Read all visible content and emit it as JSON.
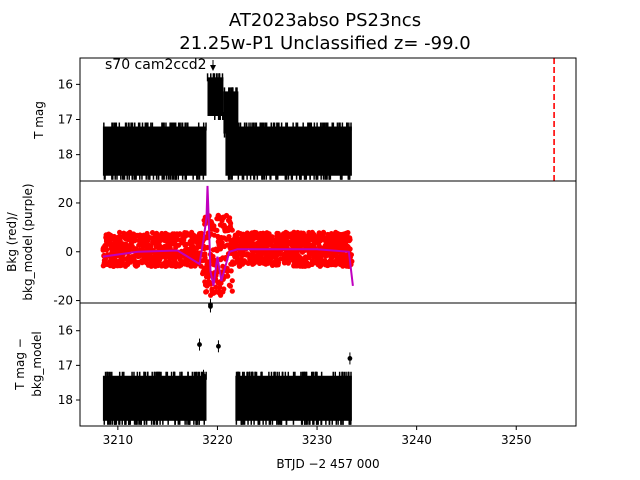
{
  "title_line1": "AT2023abso  PS23ncs",
  "title_line2": "21.25w-P1 Unclassified z= -99.0",
  "annotation": "s70 cam2ccd2",
  "xlabel": "BTJD −2 457 000",
  "colors": {
    "data": "#000000",
    "bkg": "#ff0000",
    "bkg_model": "#bf00bf",
    "marker_line": "#ff0000"
  },
  "chart_data": [
    {
      "type": "scatter",
      "panel": "top",
      "ylabel": "T mag",
      "y_inverted": true,
      "xlim": [
        3206.2,
        3256.0
      ],
      "ylim": [
        18.75,
        15.25
      ],
      "x_ticks": [
        3210,
        3220,
        3230,
        3240,
        3250
      ],
      "y_ticks": [
        16,
        17,
        18
      ],
      "vertical_line": {
        "x": 3253.8,
        "style": "dashed"
      },
      "series": [
        {
          "x_ranges": [
            [
              3208.5,
              3218.9
            ],
            [
              3220.8,
              3233.5
            ]
          ],
          "y_band": [
            17.2,
            18.6
          ]
        },
        {
          "x_range": [
            3219.0,
            3220.6
          ],
          "y_band": [
            15.8,
            16.9
          ]
        },
        {
          "x_range": [
            3220.6,
            3222.1
          ],
          "y_band": [
            16.2,
            17.4
          ]
        }
      ]
    },
    {
      "type": "scatter",
      "panel": "middle",
      "ylabel": "Bkg (red)/\nbkg_model (purple)",
      "xlim": [
        3206.2,
        3256.0
      ],
      "ylim": [
        -21,
        29
      ],
      "y_ticks": [
        -20,
        0,
        20
      ],
      "series": [
        {
          "x_ranges": [
            [
              3208.5,
              3218.5
            ],
            [
              3221.5,
              3233.5
            ]
          ],
          "y_band": [
            -6,
            8
          ]
        },
        {
          "x_range": [
            3218.5,
            3221.5
          ],
          "y_band": [
            -18,
            15
          ]
        },
        {
          "line": true,
          "x": [
            3208.5,
            3212,
            3216,
            3218.2,
            3218.6,
            3218.9,
            3219.0,
            3219.15,
            3219.3,
            3219.6,
            3220.0,
            3220.4,
            3220.8,
            3221.2,
            3222,
            3226,
            3230,
            3233.2,
            3233.6
          ],
          "y": [
            -2,
            0,
            0.5,
            -5,
            5,
            14,
            27,
            10,
            -8,
            -14,
            -2,
            -12,
            -6,
            0,
            1,
            1,
            1,
            0,
            -14
          ]
        }
      ]
    },
    {
      "type": "scatter",
      "panel": "bottom",
      "ylabel": "T mag −\nbkg_model",
      "y_inverted": true,
      "xlim": [
        3206.2,
        3256.0
      ],
      "ylim": [
        18.75,
        15.2
      ],
      "y_ticks": [
        16,
        17,
        18
      ],
      "series": [
        {
          "x_ranges": [
            [
              3208.5,
              3218.9
            ],
            [
              3221.8,
              3233.5
            ]
          ],
          "y_band": [
            17.3,
            18.6
          ]
        },
        {
          "points": [
            [
              3219.3,
              15.25
            ],
            [
              3219.3,
              15.3
            ],
            [
              3218.2,
              16.4
            ],
            [
              3218.6,
              17.3
            ],
            [
              3220.1,
              16.45
            ],
            [
              3233.3,
              16.8
            ]
          ]
        }
      ]
    }
  ]
}
